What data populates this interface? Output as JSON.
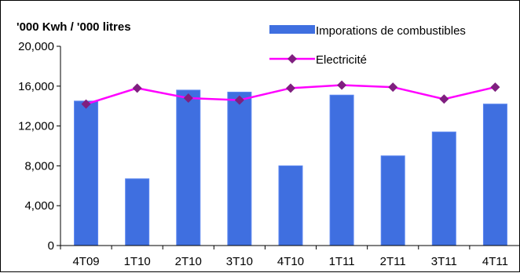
{
  "chart_data": {
    "type": "bar",
    "categories": [
      "4T09",
      "1T10",
      "2T10",
      "3T10",
      "4T10",
      "1T11",
      "2T11",
      "3T11",
      "4T11"
    ],
    "series": [
      {
        "name": "Imporations de combustibles",
        "type": "bar",
        "color": "#3f6fe0",
        "values": [
          14500,
          6700,
          15600,
          15400,
          8000,
          15100,
          9000,
          11400,
          14200
        ]
      },
      {
        "name": "Electricité",
        "type": "line",
        "color": "#ff00ff",
        "marker_color": "#7f1f7f",
        "values": [
          14200,
          15800,
          14800,
          14600,
          15800,
          16100,
          15900,
          14700,
          15900
        ]
      }
    ],
    "ylabel": "'000 Kwh / '000 litres",
    "ylim": [
      0,
      20000
    ],
    "yticks": [
      "0",
      "4,000",
      "8,000",
      "12,000",
      "16,000",
      "20,000"
    ],
    "ytick_values": [
      0,
      4000,
      8000,
      12000,
      16000,
      20000
    ],
    "grid": false,
    "legend_position": "top-right"
  }
}
